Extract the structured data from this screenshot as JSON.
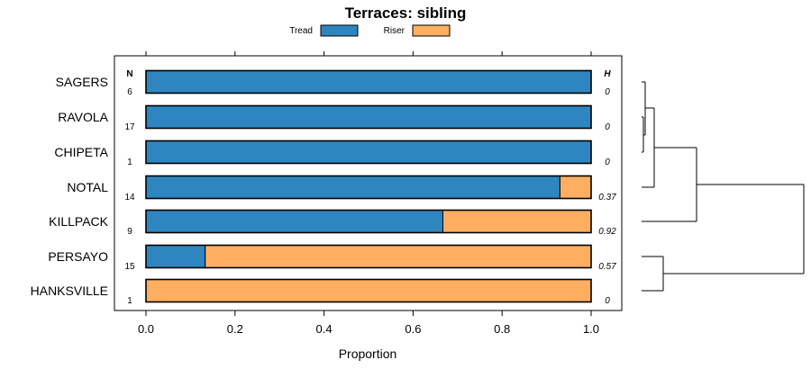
{
  "chart_data": {
    "type": "bar",
    "orientation": "horizontal",
    "stacked": true,
    "title": "Terraces: sibling",
    "xlabel": "Proportion",
    "ylabel": "",
    "xlim": [
      0.0,
      1.0
    ],
    "x_ticks": [
      "0.0",
      "0.2",
      "0.4",
      "0.6",
      "0.8",
      "1.0"
    ],
    "legend_position": "top",
    "categories": [
      "SAGERS",
      "RAVOLA",
      "CHIPETA",
      "NOTAL",
      "KILLPACK",
      "PERSAYO",
      "HANKSVILLE"
    ],
    "series": [
      {
        "name": "Tread",
        "color": "#2e86c1",
        "values": [
          1.0,
          1.0,
          1.0,
          0.93,
          0.667,
          0.133,
          0.0
        ]
      },
      {
        "name": "Riser",
        "color": "#fdae61",
        "values": [
          0.0,
          0.0,
          0.0,
          0.07,
          0.333,
          0.867,
          1.0
        ]
      }
    ],
    "n_header": "N",
    "h_header": "H",
    "n_values": [
      "6",
      "17",
      "1",
      "14",
      "9",
      "15",
      "1"
    ],
    "h_values": [
      "0",
      "0",
      "0",
      "0.37",
      "0.92",
      "0.57",
      "0"
    ],
    "dendrogram": {
      "leaves": [
        "SAGERS",
        "RAVOLA",
        "CHIPETA",
        "NOTAL",
        "KILLPACK",
        "PERSAYO",
        "HANKSVILLE"
      ],
      "merges": [
        {
          "a": "RAVOLA",
          "b": "CHIPETA",
          "height": 0.02
        },
        {
          "a": "SAGERS",
          "b": "RAVOLA+CHIPETA",
          "height": 0.05
        },
        {
          "a": "SAGERS+RAVOLA+CHIPETA",
          "b": "NOTAL",
          "height": 0.07
        },
        {
          "a": "upper",
          "b": "KILLPACK",
          "height": 0.33
        },
        {
          "a": "PERSAYO",
          "b": "HANKSVILLE",
          "height": 0.13
        },
        {
          "a": "top",
          "b": "bottom",
          "height": 1.0
        }
      ]
    }
  }
}
